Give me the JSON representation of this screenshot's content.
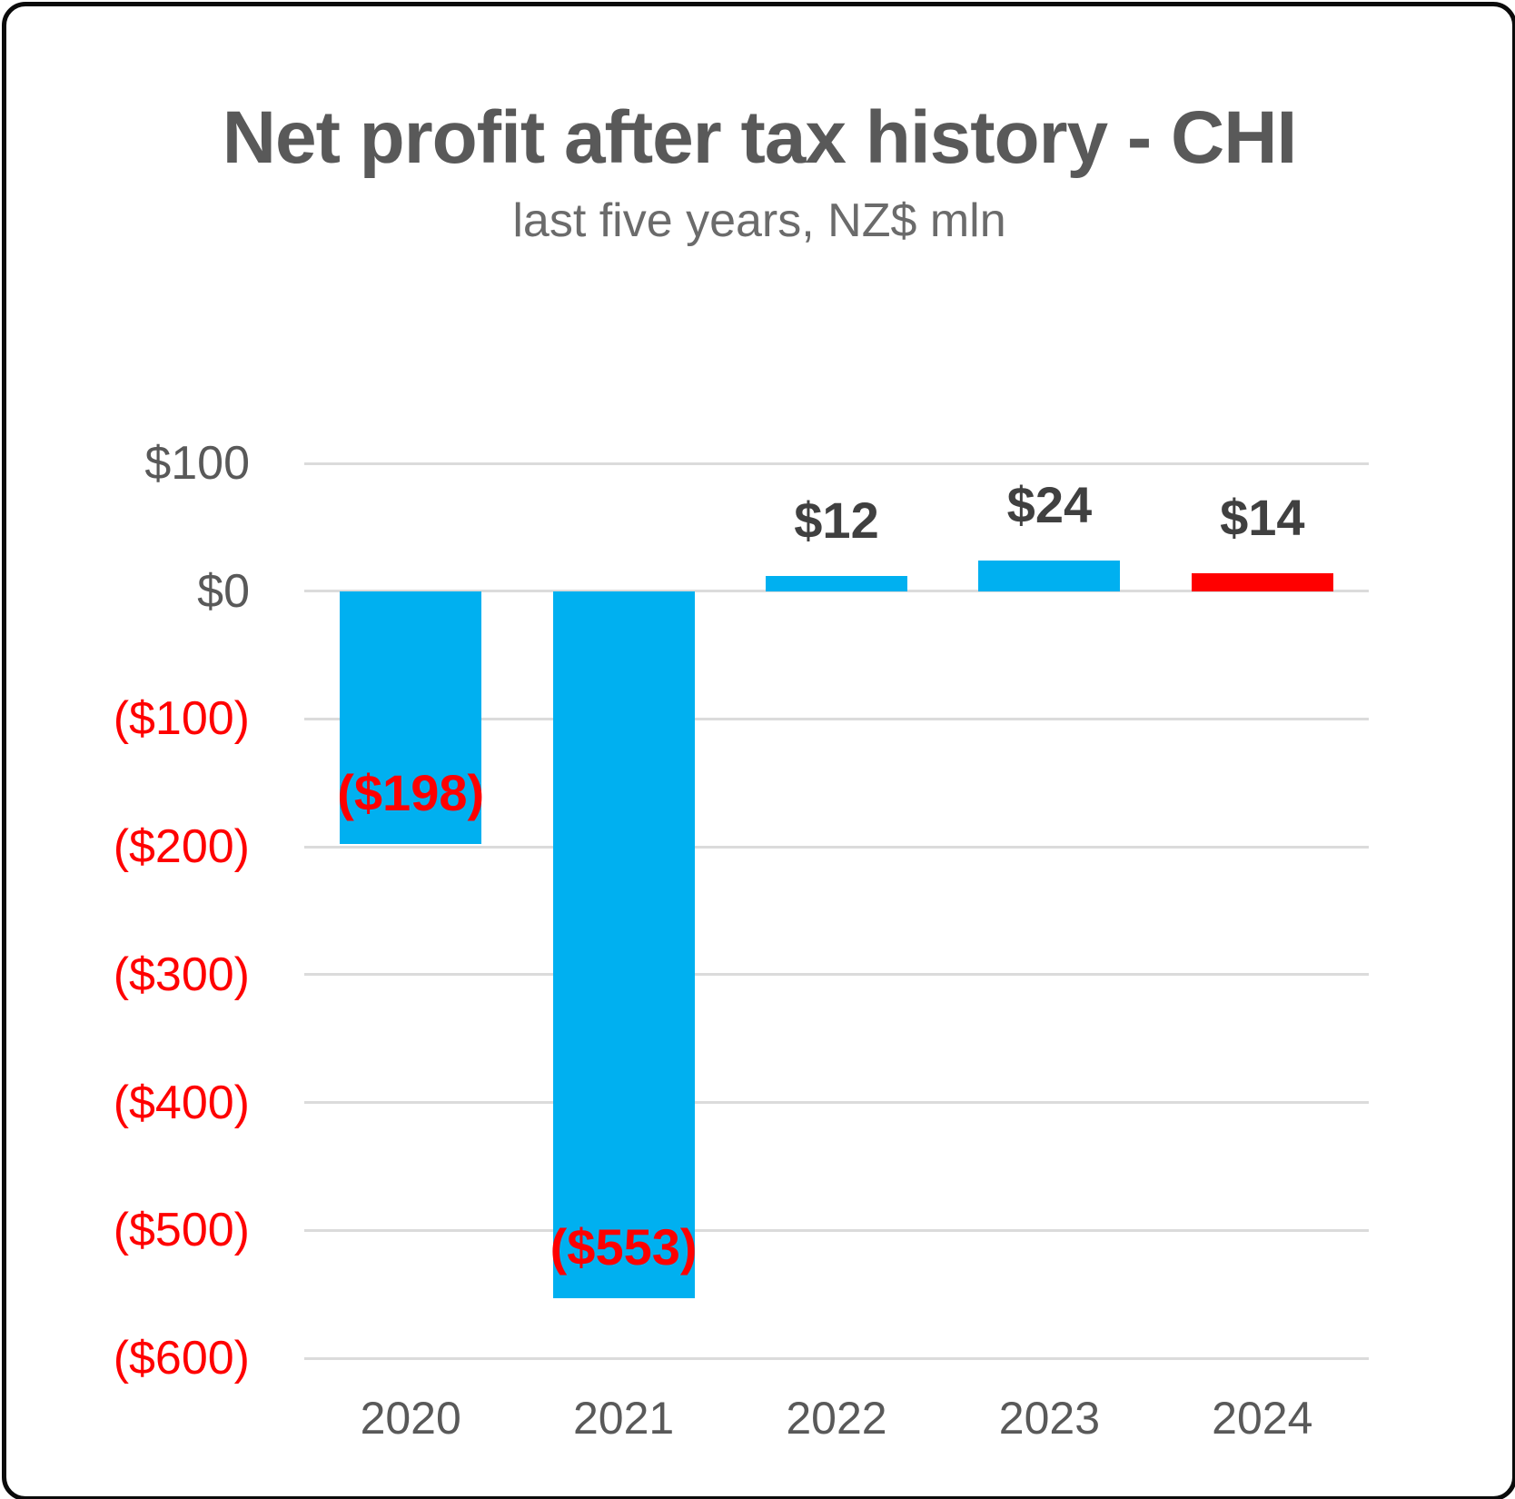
{
  "title": "Net profit after tax history - CHI",
  "subtitle": "last five years, NZ$ mln",
  "colors": {
    "background": "#FFFFFF",
    "border": "#0B0B0B",
    "title_text": "#595959",
    "subtitle_text": "#6B6B6B",
    "gridline": "#DBDBDB",
    "axis_text_positive": "#595959",
    "axis_text_negative": "#FF0000",
    "category_text": "#595959",
    "data_label_positive": "#404040",
    "data_label_negative": "#FF0000",
    "bar_blue": "#00B0F0",
    "bar_red": "#FF0000"
  },
  "chart_data": {
    "type": "bar",
    "title": "Net profit after tax history - CHI",
    "subtitle": "last five years, NZ$ mln",
    "xlabel": "",
    "ylabel": "",
    "categories": [
      "2020",
      "2021",
      "2022",
      "2023",
      "2024"
    ],
    "values": [
      -198,
      -553,
      12,
      24,
      14
    ],
    "data_labels": [
      "($198)",
      "($553)",
      "$12",
      "$24",
      "$14"
    ],
    "bar_colors": [
      "#00B0F0",
      "#00B0F0",
      "#00B0F0",
      "#00B0F0",
      "#FF0000"
    ],
    "ylim": [
      -600,
      100
    ],
    "y_ticks": [
      {
        "value": 100,
        "label": "$100"
      },
      {
        "value": 0,
        "label": "$0"
      },
      {
        "value": -100,
        "label": "($100)"
      },
      {
        "value": -200,
        "label": "($200)"
      },
      {
        "value": -300,
        "label": "($300)"
      },
      {
        "value": -400,
        "label": "($400)"
      },
      {
        "value": -500,
        "label": "($500)"
      },
      {
        "value": -600,
        "label": "($600)"
      }
    ],
    "grid": true,
    "legend": false,
    "data_label_placement": {
      "positive": "outside-end-above-bar",
      "negative": "inside-end-bottom-of-bar"
    }
  }
}
